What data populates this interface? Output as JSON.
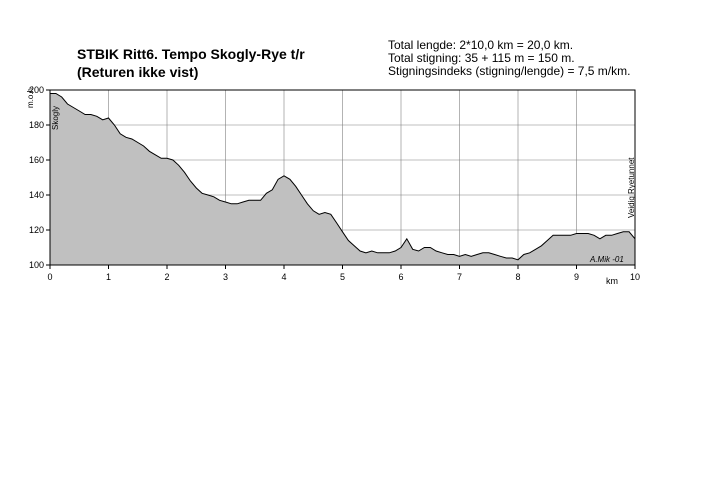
{
  "title": {
    "line1": "STBIK Ritt6. Tempo Skogly-Rye t/r",
    "line2": "(Returen ikke vist)"
  },
  "stats": {
    "line1": "Total lengde: 2*10,0 km = 20,0 km.",
    "line2": "Total stigning:  35 + 115 m = 150 m.",
    "line3": "Stigningsindeks (stigning/lengde) = 7,5 m/km."
  },
  "annotations": {
    "start": "Skogly",
    "end": "Veidig Ryetunnet",
    "credit": "A.Mik -01"
  },
  "colors": {
    "fill": "#c0c0c0",
    "line": "#000000",
    "grid": "#808080"
  },
  "chart_data": {
    "type": "area",
    "xlabel": "km",
    "ylabel": "m.o.h.",
    "xlim": [
      0,
      10
    ],
    "ylim": [
      100,
      200
    ],
    "xticks": [
      "0",
      "1",
      "2",
      "3",
      "4",
      "5",
      "6",
      "7",
      "8",
      "9",
      "10"
    ],
    "yticks": [
      "100",
      "120",
      "140",
      "160",
      "180",
      "200"
    ],
    "grid": true,
    "x": [
      0,
      0.1,
      0.2,
      0.3,
      0.4,
      0.5,
      0.6,
      0.7,
      0.8,
      0.9,
      1.0,
      1.1,
      1.2,
      1.3,
      1.4,
      1.5,
      1.6,
      1.7,
      1.8,
      1.9,
      2.0,
      2.1,
      2.2,
      2.3,
      2.4,
      2.5,
      2.6,
      2.7,
      2.8,
      2.9,
      3.0,
      3.1,
      3.2,
      3.3,
      3.4,
      3.5,
      3.6,
      3.7,
      3.8,
      3.9,
      4.0,
      4.1,
      4.2,
      4.3,
      4.4,
      4.5,
      4.6,
      4.7,
      4.8,
      4.9,
      5.0,
      5.1,
      5.2,
      5.3,
      5.4,
      5.5,
      5.6,
      5.7,
      5.8,
      5.9,
      6.0,
      6.1,
      6.2,
      6.3,
      6.4,
      6.5,
      6.6,
      6.7,
      6.8,
      6.9,
      7.0,
      7.1,
      7.2,
      7.3,
      7.4,
      7.5,
      7.6,
      7.7,
      7.8,
      7.9,
      8.0,
      8.1,
      8.2,
      8.3,
      8.4,
      8.5,
      8.6,
      8.7,
      8.8,
      8.9,
      9.0,
      9.1,
      9.2,
      9.3,
      9.4,
      9.5,
      9.6,
      9.7,
      9.8,
      9.9,
      10.0
    ],
    "series": [
      {
        "values": [
          198,
          198,
          196,
          192,
          190,
          188,
          186,
          186,
          185,
          183,
          184,
          180,
          175,
          173,
          172,
          170,
          168,
          165,
          163,
          161,
          161,
          160,
          157,
          153,
          148,
          144,
          141,
          140,
          139,
          137,
          136,
          135,
          135,
          136,
          137,
          137,
          137,
          141,
          143,
          149,
          151,
          149,
          145,
          140,
          135,
          131,
          129,
          130,
          129,
          124,
          119,
          114,
          111,
          108,
          107,
          108,
          107,
          107,
          107,
          108,
          110,
          115,
          109,
          108,
          110,
          110,
          108,
          107,
          106,
          106,
          105,
          106,
          105,
          106,
          107,
          107,
          106,
          105,
          104,
          104,
          103,
          106,
          107,
          109,
          111,
          114,
          117,
          117,
          117,
          117,
          118,
          118,
          118,
          117,
          115,
          117,
          117,
          118,
          119,
          119,
          115
        ]
      }
    ]
  }
}
